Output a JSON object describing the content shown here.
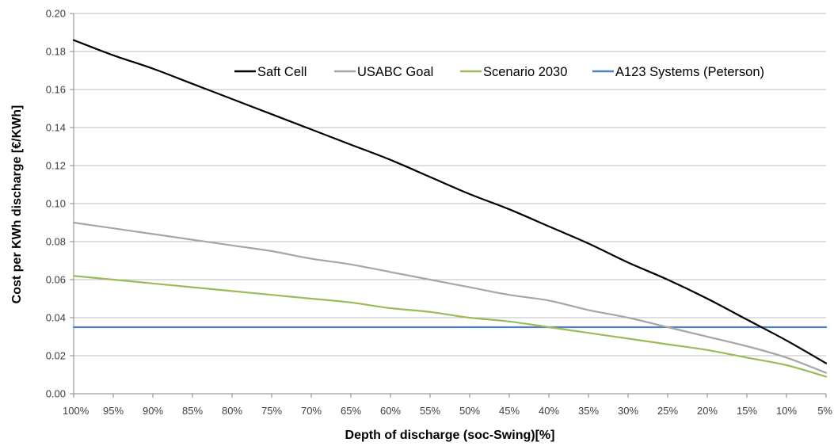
{
  "chart_data": {
    "type": "line",
    "xlabel": "Depth of discharge (soc-Swing)[%]",
    "ylabel": "Cost per KWh discharge [€/KWh]",
    "categories": [
      "100%",
      "95%",
      "90%",
      "85%",
      "80%",
      "75%",
      "70%",
      "65%",
      "60%",
      "55%",
      "50%",
      "45%",
      "40%",
      "35%",
      "30%",
      "25%",
      "20%",
      "15%",
      "10%",
      "5%"
    ],
    "ylim": [
      0,
      0.2
    ],
    "yticks": [
      "0.00",
      "0.02",
      "0.04",
      "0.06",
      "0.08",
      "0.10",
      "0.12",
      "0.14",
      "0.16",
      "0.18",
      "0.20"
    ],
    "grid": "horizontal",
    "legend_position": "top-right",
    "series": [
      {
        "name": "Saft Cell",
        "color": "#000000",
        "values": [
          0.186,
          0.178,
          0.171,
          0.163,
          0.155,
          0.147,
          0.139,
          0.131,
          0.123,
          0.114,
          0.105,
          0.097,
          0.088,
          0.079,
          0.069,
          0.06,
          0.05,
          0.039,
          0.028,
          0.016
        ]
      },
      {
        "name": "USABC Goal",
        "color": "#a6a6a6",
        "values": [
          0.09,
          0.087,
          0.084,
          0.081,
          0.078,
          0.075,
          0.071,
          0.068,
          0.064,
          0.06,
          0.056,
          0.052,
          0.049,
          0.044,
          0.04,
          0.035,
          0.03,
          0.025,
          0.019,
          0.011
        ]
      },
      {
        "name": "Scenario 2030",
        "color": "#9bbb59",
        "values": [
          0.062,
          0.06,
          0.058,
          0.056,
          0.054,
          0.052,
          0.05,
          0.048,
          0.045,
          0.043,
          0.04,
          0.038,
          0.035,
          0.032,
          0.029,
          0.026,
          0.023,
          0.019,
          0.015,
          0.009
        ]
      },
      {
        "name": "A123 Systems (Peterson)",
        "color": "#4f81bd",
        "values": [
          0.035,
          0.035,
          0.035,
          0.035,
          0.035,
          0.035,
          0.035,
          0.035,
          0.035,
          0.035,
          0.035,
          0.035,
          0.035,
          0.035,
          0.035,
          0.035,
          0.035,
          0.035,
          0.035,
          0.035
        ]
      }
    ]
  }
}
